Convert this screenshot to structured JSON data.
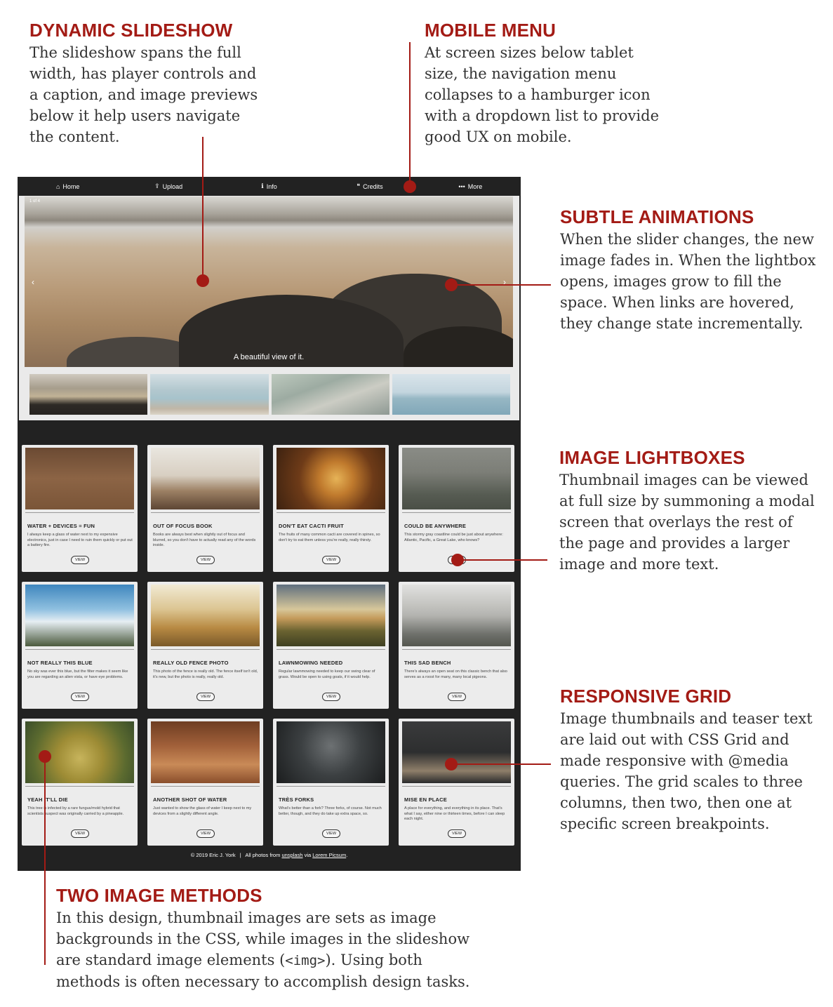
{
  "annotations": {
    "slideshow": {
      "title": "DYNAMIC SLIDESHOW",
      "text": "The slideshow spans the full width, has player controls and a caption, and image previews below it help users navigate the content."
    },
    "mobile_menu": {
      "title": "MOBILE MENU",
      "text": "At screen sizes below tablet size, the navigation menu collapses to a hamburger icon with a dropdown list to provide good UX on mobile."
    },
    "animations": {
      "title": "SUBTLE ANIMATIONS",
      "text": "When the slider changes, the new image fades in. When the lightbox opens, images grow to fill the space. When links are hovered, they change state incrementally."
    },
    "lightboxes": {
      "title": "IMAGE LIGHTBOXES",
      "text": "Thumbnail images can be viewed at full size by summoning a modal screen that overlays the rest of the page and provides a larger image and more text."
    },
    "grid": {
      "title": "RESPONSIVE GRID",
      "text": "Image thumbnails and teaser text are laid out with CSS Grid and made responsive with @media queries. The grid scales to three columns, then two, then one at specific screen breakpoints."
    },
    "two_methods": {
      "title": "TWO IMAGE METHODS",
      "text_before": "In this design, thumbnail images are sets as image backgrounds in the CSS, while images in the slideshow are standard image elements (",
      "code": "<img>",
      "text_after": "). Using both methods is often necessary to accomplish design tasks."
    }
  },
  "nav": [
    {
      "label": "Home",
      "icon": "home-icon",
      "glyph": "⌂"
    },
    {
      "label": "Upload",
      "icon": "upload-icon",
      "glyph": "⇪"
    },
    {
      "label": "Info",
      "icon": "info-icon",
      "glyph": "ℹ"
    },
    {
      "label": "Credits",
      "icon": "quote-icon",
      "glyph": "❝"
    },
    {
      "label": "More",
      "icon": "ellipsis-icon",
      "glyph": "•••"
    }
  ],
  "slider": {
    "counter": "1 of 4",
    "prev_glyph": "‹",
    "next_glyph": "›",
    "caption": "A beautiful view of it."
  },
  "cards": [
    {
      "title": "WATER + DEVICES = FUN",
      "text": "I always keep a glass of water next to my expensive electronics, just in case I need to ruin them quickly or put out a battery fire.",
      "button": "VIEW"
    },
    {
      "title": "OUT OF FOCUS BOOK",
      "text": "Books are always best when slightly out of focus and blurred, so you don't have to actually read any of the words inside.",
      "button": "VIEW"
    },
    {
      "title": "DON'T EAT CACTI FRUIT",
      "text": "The fruits of many common cacti are covered in spines, so don't try to eat them unless you're really, really thirsty.",
      "button": "VIEW"
    },
    {
      "title": "COULD BE ANYWHERE",
      "text": "This stormy gray coastline could be just about anywhere: Atlantic, Pacific, a Great Lake, who knows?",
      "button": "VIEW"
    },
    {
      "title": "NOT REALLY THIS BLUE",
      "text": "No sky was ever this blue, but the filter makes it seem like you are regarding an alien vista, or have eye problems.",
      "button": "VIEW"
    },
    {
      "title": "REALLY OLD FENCE PHOTO",
      "text": "This photo of the fence is really old. The fence itself isn't old, it's new, but the photo is really, really old.",
      "button": "VIEW"
    },
    {
      "title": "LAWNMOWING NEEDED",
      "text": "Regular lawnmowing needed to keep our swing clear of grass. Would be open to using goats, if it would help.",
      "button": "VIEW"
    },
    {
      "title": "THIS SAD BENCH",
      "text": "There's always an open seat on this classic bench that also serves as a roost for many, many local pigeons.",
      "button": "VIEW"
    },
    {
      "title": "YEAH IT'LL DIE",
      "text": "This tree is infected by a rare fungus/mold hybrid that scientists suspect was originally carried by a pineapple.",
      "button": "VIEW"
    },
    {
      "title": "ANOTHER SHOT OF WATER",
      "text": "Just wanted to show the glass of water I keep next to my devices from a slightly different angle.",
      "button": "VIEW"
    },
    {
      "title": "TRÈS FORKS",
      "text": "What's better than a fork? Three forks, of course. Not much better, though, and they do take up extra space, so.",
      "button": "VIEW"
    },
    {
      "title": "MISE EN PLACE",
      "text": "A place for everything, and everything in its place. That's what I say, either nine or thirteen times, before I can sleep each night.",
      "button": "VIEW"
    }
  ],
  "footer": {
    "copyright": "© 2019 Eric J. York",
    "separator": "|",
    "photos_prefix": "All photos from",
    "link1": "unsplash",
    "via": "via",
    "link2": "Lorem Picsum",
    "end": "."
  },
  "accent_color": "#a31b15"
}
